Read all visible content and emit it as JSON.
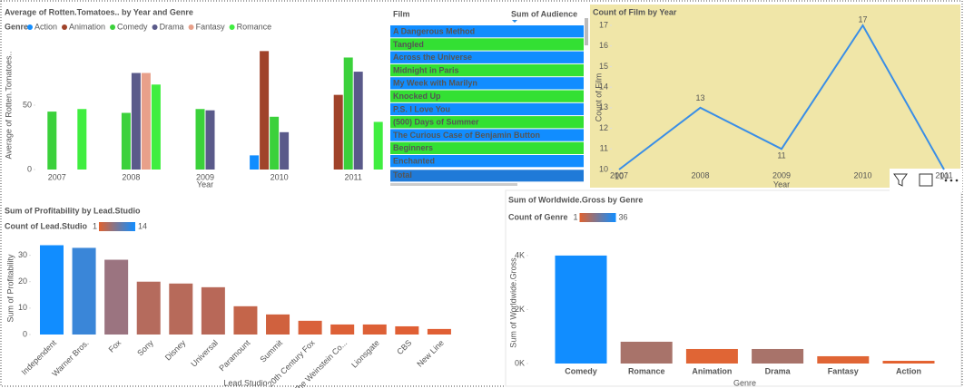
{
  "chart_data": [
    {
      "type": "bar",
      "title": "Average of Rotten.Tomatoes.. by Year and Genre",
      "title_color": "#5a2a2a",
      "legend_title": "Genre",
      "x_label": "Year",
      "y_label": "Average of Rotten.Tomatoes..",
      "categories": [
        "2007",
        "2008",
        "2009",
        "2010",
        "2011"
      ],
      "series": [
        {
          "name": "Action",
          "color": "#118dff",
          "values": [
            null,
            null,
            null,
            11,
            null
          ]
        },
        {
          "name": "Animation",
          "color": "#a0432a",
          "values": [
            null,
            null,
            null,
            92,
            58
          ]
        },
        {
          "name": "Comedy",
          "color": "#3bd13b",
          "values": [
            45,
            44,
            47,
            41,
            87
          ]
        },
        {
          "name": "Drama",
          "color": "#5a5a8a",
          "values": [
            null,
            75,
            46,
            29,
            76
          ]
        },
        {
          "name": "Fantasy",
          "color": "#e8a08a",
          "values": [
            null,
            75,
            null,
            null,
            null
          ]
        },
        {
          "name": "Romance",
          "color": "#40ee40",
          "values": [
            47,
            66,
            null,
            null,
            37
          ]
        }
      ],
      "ylim": [
        0,
        100
      ],
      "yticks": [
        0,
        50
      ]
    },
    {
      "type": "line",
      "title": "Count of Film by Year",
      "title_color": "#3a8ee6",
      "background": "#f0e6a8",
      "x_label": "Year",
      "y_label": "Count of Film",
      "categories": [
        "2007",
        "2008",
        "2009",
        "2010",
        "2011"
      ],
      "values": [
        10,
        13,
        11,
        17,
        10
      ],
      "color": "#3a8ee6",
      "ylim": [
        10,
        17
      ],
      "yticks": [
        10,
        11,
        12,
        13,
        14,
        15,
        16,
        17
      ]
    },
    {
      "type": "bar",
      "title": "Sum of Profitability by Lead.Studio",
      "title_color": "#2a7fd4",
      "legend_title": "Count of Lead.Studio",
      "color_range": [
        1,
        14
      ],
      "gradient": [
        "#e0622f",
        "#118dff"
      ],
      "x_label": "Lead.Studio",
      "y_label": "Sum of Profitability",
      "categories": [
        "Independent",
        "Warner Bros.",
        "Fox",
        "Sony",
        "Disney",
        "Universal",
        "Paramount",
        "Summit",
        "20th Century Fox",
        "The Weinstein Co...",
        "Lionsgate",
        "CBS",
        "New Line"
      ],
      "values": [
        33.8,
        32.8,
        28.3,
        20,
        19.3,
        17.9,
        10.7,
        7.6,
        5.2,
        3.8,
        3.8,
        3.1,
        2.1
      ],
      "colors": [
        "#118dff",
        "#3a86d8",
        "#9b7480",
        "#b56b5d",
        "#b76a5a",
        "#b86858",
        "#c4654a",
        "#d0613e",
        "#d9613a",
        "#dd6036",
        "#dd6036",
        "#e05f34",
        "#e05f34"
      ],
      "ylim": [
        0,
        35
      ],
      "yticks": [
        0,
        10,
        20,
        30
      ]
    },
    {
      "type": "bar",
      "title": "Sum of Worldwide.Gross by Genre",
      "title_color": "#3dd63d",
      "legend_title": "Count of Genre",
      "color_range": [
        1,
        36
      ],
      "gradient": [
        "#e0622f",
        "#118dff"
      ],
      "x_label": "Genre",
      "y_label": "Sum of Worldwide.Gross",
      "categories": [
        "Comedy",
        "Romance",
        "Animation",
        "Drama",
        "Fantasy",
        "Action"
      ],
      "values": [
        4000,
        807,
        538,
        538,
        270,
        100
      ],
      "colors": [
        "#118dff",
        "#a8736a",
        "#e06535",
        "#a8736a",
        "#e06535",
        "#e36230"
      ],
      "ylim": [
        0,
        4500
      ],
      "yticks": [
        {
          "value": 0,
          "label": "0K"
        },
        {
          "value": 2000,
          "label": "2K"
        },
        {
          "value": 4000,
          "label": "4K"
        }
      ]
    }
  ],
  "table": {
    "columns": [
      "Film",
      "Sum of Audience"
    ],
    "rows": [
      "A Dangerous Method",
      "Tangled",
      "Across the Universe",
      "Midnight in Paris",
      "My Week with Marilyn",
      "Knocked Up",
      "P.S. I Love You",
      "(500) Days of Summer",
      "The Curious Case of Benjamin Button",
      "Beginners",
      "Enchanted"
    ],
    "total": "Total"
  }
}
